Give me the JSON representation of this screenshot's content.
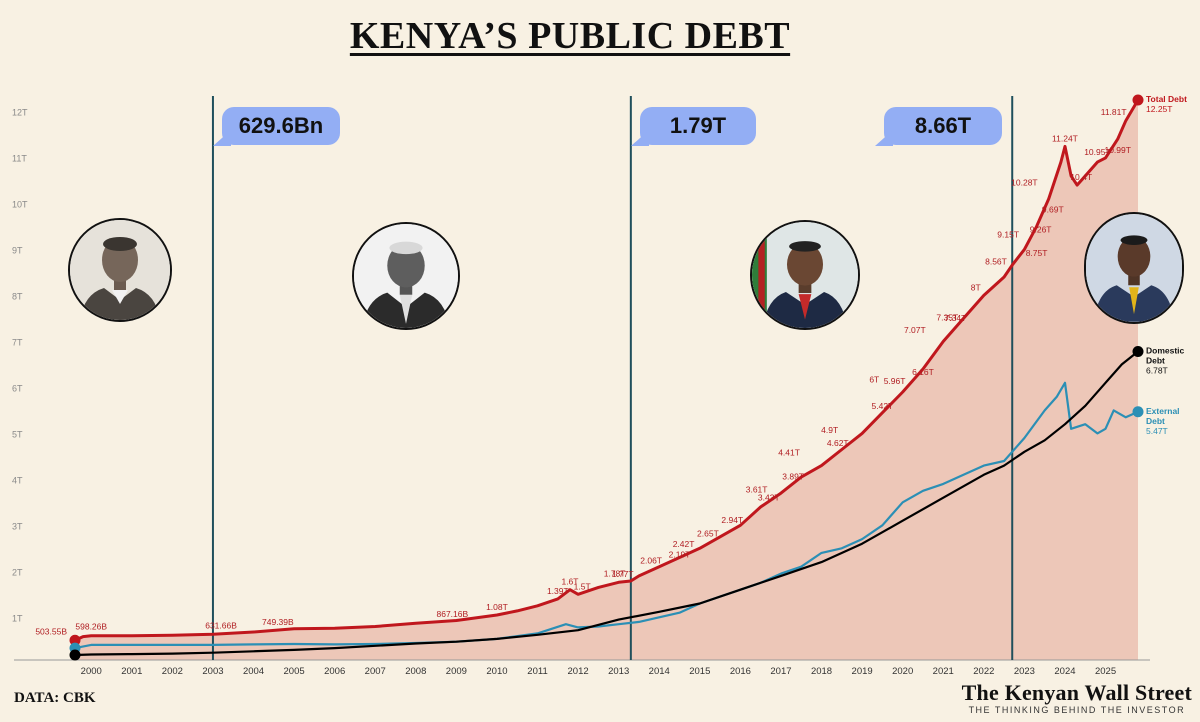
{
  "header": {
    "title": "KENYA’S PUBLIC DEBT"
  },
  "footer": {
    "source": "DATA: CBK",
    "brand": "The Kenyan Wall Street",
    "tagline": "THE THINKING BEHIND THE INVESTOR"
  },
  "colors": {
    "total": "#c0171d",
    "domestic": "#000000",
    "external": "#2b8fb5",
    "fill": "#ebbfb0",
    "divider": "#1f4f5c",
    "bubble": "#93aef4",
    "background": "#f8f1e3"
  },
  "bubbles": [
    {
      "text": "629.6Bn"
    },
    {
      "text": "1.79T"
    },
    {
      "text": "8.66T"
    }
  ],
  "portraits": [
    {
      "icon": "portrait-1-icon"
    },
    {
      "icon": "portrait-2-icon"
    },
    {
      "icon": "portrait-3-icon"
    },
    {
      "icon": "portrait-4-icon"
    }
  ],
  "chart_data": {
    "type": "line",
    "x_ticks": [
      "2000",
      "2001",
      "2002",
      "2003",
      "2004",
      "2005",
      "2006",
      "2007",
      "2008",
      "2009",
      "2010",
      "2011",
      "2012",
      "2013",
      "2014",
      "2015",
      "2016",
      "2017",
      "2018",
      "2019",
      "2020",
      "2021",
      "2022",
      "2023",
      "2024",
      "2025"
    ],
    "y_ticks": [
      "1T",
      "2T",
      "3T",
      "4T",
      "5T",
      "6T",
      "7T",
      "8T",
      "9T",
      "10T",
      "11T",
      "12T"
    ],
    "ylim": [
      0,
      12.5
    ],
    "xlim": [
      1999.4,
      2026.3
    ],
    "grid": false,
    "series": [
      {
        "key": "total",
        "color": "#c0171d",
        "points": [
          [
            1999.6,
            0.5
          ],
          [
            1999.8,
            0.58
          ],
          [
            2000.0,
            0.6
          ],
          [
            2001,
            0.6
          ],
          [
            2002,
            0.61
          ],
          [
            2003,
            0.63
          ],
          [
            2004,
            0.68
          ],
          [
            2005,
            0.75
          ],
          [
            2006,
            0.76
          ],
          [
            2007,
            0.8
          ],
          [
            2008,
            0.87
          ],
          [
            2009,
            0.93
          ],
          [
            2010,
            1.05
          ],
          [
            2010.5,
            1.14
          ],
          [
            2011,
            1.25
          ],
          [
            2011.5,
            1.4
          ],
          [
            2011.8,
            1.6
          ],
          [
            2012,
            1.5
          ],
          [
            2012.5,
            1.65
          ],
          [
            2013,
            1.76
          ],
          [
            2013.3,
            1.79
          ],
          [
            2013.5,
            1.9
          ],
          [
            2014,
            2.1
          ],
          [
            2014.5,
            2.3
          ],
          [
            2015,
            2.5
          ],
          [
            2015.5,
            2.75
          ],
          [
            2016,
            3.0
          ],
          [
            2016.5,
            3.4
          ],
          [
            2017,
            3.7
          ],
          [
            2017.5,
            4.05
          ],
          [
            2018,
            4.3
          ],
          [
            2018.5,
            4.65
          ],
          [
            2019,
            5.0
          ],
          [
            2019.5,
            5.45
          ],
          [
            2020,
            5.9
          ],
          [
            2020.5,
            6.4
          ],
          [
            2021,
            7.0
          ],
          [
            2021.5,
            7.5
          ],
          [
            2022,
            8.0
          ],
          [
            2022.5,
            8.4
          ],
          [
            2022.7,
            8.66
          ],
          [
            2023,
            9.0
          ],
          [
            2023.3,
            9.5
          ],
          [
            2023.6,
            10.1
          ],
          [
            2023.9,
            10.9
          ],
          [
            2024.0,
            11.24
          ],
          [
            2024.15,
            10.6
          ],
          [
            2024.3,
            10.4
          ],
          [
            2024.5,
            10.6
          ],
          [
            2024.8,
            10.9
          ],
          [
            2025.0,
            10.99
          ],
          [
            2025.3,
            11.4
          ],
          [
            2025.5,
            11.8
          ],
          [
            2025.8,
            12.25
          ]
        ],
        "labels": [
          {
            "text": "503.55B",
            "x": 1999.6,
            "y": 0.5
          },
          {
            "text": "598.26B",
            "x": 2000.0,
            "y": 0.6
          },
          {
            "text": "631.66B",
            "x": 2003.2,
            "y": 0.63
          },
          {
            "text": "749.39B",
            "x": 2004.6,
            "y": 0.7
          },
          {
            "text": "867.16B",
            "x": 2008.9,
            "y": 0.88
          },
          {
            "text": "1.08T",
            "x": 2010.0,
            "y": 1.05
          },
          {
            "text": "1.39T",
            "x": 2011.5,
            "y": 1.4
          },
          {
            "text": "1.5T",
            "x": 2012.1,
            "y": 1.5
          },
          {
            "text": "1.6T",
            "x": 2011.8,
            "y": 1.6
          },
          {
            "text": "1.77T",
            "x": 2013.1,
            "y": 1.77
          },
          {
            "text": "1.78T",
            "x": 2012.9,
            "y": 1.78
          },
          {
            "text": "2.06T",
            "x": 2013.8,
            "y": 2.06
          },
          {
            "text": "2.19T",
            "x": 2014.5,
            "y": 2.19
          },
          {
            "text": "2.42T",
            "x": 2014.6,
            "y": 2.42
          },
          {
            "text": "2.65T",
            "x": 2015.2,
            "y": 2.65
          },
          {
            "text": "2.94T",
            "x": 2015.8,
            "y": 2.94
          },
          {
            "text": "3.43T",
            "x": 2016.7,
            "y": 3.43
          },
          {
            "text": "3.61T",
            "x": 2016.4,
            "y": 3.61
          },
          {
            "text": "3.89T",
            "x": 2017.3,
            "y": 3.89
          },
          {
            "text": "4.41T",
            "x": 2017.2,
            "y": 4.41
          },
          {
            "text": "4.62T",
            "x": 2018.4,
            "y": 4.62
          },
          {
            "text": "4.9T",
            "x": 2018.2,
            "y": 4.9
          },
          {
            "text": "5.42T",
            "x": 2019.5,
            "y": 5.42
          },
          {
            "text": "5.96T",
            "x": 2019.8,
            "y": 5.96
          },
          {
            "text": "6T",
            "x": 2019.3,
            "y": 6.0
          },
          {
            "text": "6.16T",
            "x": 2020.5,
            "y": 6.16
          },
          {
            "text": "7.07T",
            "x": 2020.3,
            "y": 7.07
          },
          {
            "text": "7.34T",
            "x": 2021.3,
            "y": 7.34
          },
          {
            "text": "7.35T",
            "x": 2021.1,
            "y": 7.35
          },
          {
            "text": "8T",
            "x": 2021.8,
            "y": 8.0
          },
          {
            "text": "8.56T",
            "x": 2022.3,
            "y": 8.56
          },
          {
            "text": "8.75T",
            "x": 2023.3,
            "y": 8.75
          },
          {
            "text": "9.15T",
            "x": 2022.6,
            "y": 9.15
          },
          {
            "text": "9.26T",
            "x": 2023.4,
            "y": 9.26
          },
          {
            "text": "9.69T",
            "x": 2023.7,
            "y": 9.69
          },
          {
            "text": "10.28T",
            "x": 2023.0,
            "y": 10.28
          },
          {
            "text": "10.4T",
            "x": 2024.4,
            "y": 10.4
          },
          {
            "text": "10.95T",
            "x": 2024.8,
            "y": 10.95
          },
          {
            "text": "10.99T",
            "x": 2025.3,
            "y": 10.99
          },
          {
            "text": "11.24T",
            "x": 2024.0,
            "y": 11.24
          },
          {
            "text": "11.81T",
            "x": 2025.2,
            "y": 11.81
          }
        ]
      },
      {
        "key": "domestic",
        "color": "#000000",
        "points": [
          [
            1999.6,
            0.18
          ],
          [
            2000,
            0.19
          ],
          [
            2001,
            0.2
          ],
          [
            2002,
            0.21
          ],
          [
            2003,
            0.23
          ],
          [
            2004,
            0.26
          ],
          [
            2005,
            0.29
          ],
          [
            2006,
            0.33
          ],
          [
            2007,
            0.38
          ],
          [
            2008,
            0.43
          ],
          [
            2009,
            0.47
          ],
          [
            2010,
            0.53
          ],
          [
            2011,
            0.62
          ],
          [
            2012,
            0.72
          ],
          [
            2013,
            0.95
          ],
          [
            2014,
            1.12
          ],
          [
            2015,
            1.3
          ],
          [
            2016,
            1.6
          ],
          [
            2017,
            1.9
          ],
          [
            2018,
            2.2
          ],
          [
            2019,
            2.6
          ],
          [
            2020,
            3.1
          ],
          [
            2021,
            3.6
          ],
          [
            2022,
            4.1
          ],
          [
            2022.5,
            4.3
          ],
          [
            2023,
            4.6
          ],
          [
            2023.5,
            4.85
          ],
          [
            2024,
            5.2
          ],
          [
            2024.5,
            5.6
          ],
          [
            2025,
            6.1
          ],
          [
            2025.4,
            6.5
          ],
          [
            2025.8,
            6.78
          ]
        ]
      },
      {
        "key": "external",
        "color": "#2b8fb5",
        "points": [
          [
            1999.6,
            0.33
          ],
          [
            2000,
            0.4
          ],
          [
            2001,
            0.4
          ],
          [
            2002,
            0.4
          ],
          [
            2003,
            0.4
          ],
          [
            2004,
            0.41
          ],
          [
            2005,
            0.42
          ],
          [
            2006,
            0.41
          ],
          [
            2007,
            0.42
          ],
          [
            2008,
            0.44
          ],
          [
            2009,
            0.47
          ],
          [
            2010,
            0.53
          ],
          [
            2011,
            0.65
          ],
          [
            2011.7,
            0.85
          ],
          [
            2012,
            0.78
          ],
          [
            2012.5,
            0.8
          ],
          [
            2013,
            0.85
          ],
          [
            2013.5,
            0.9
          ],
          [
            2014,
            1.0
          ],
          [
            2014.5,
            1.1
          ],
          [
            2015,
            1.3
          ],
          [
            2015.5,
            1.45
          ],
          [
            2016,
            1.6
          ],
          [
            2016.5,
            1.75
          ],
          [
            2017,
            1.95
          ],
          [
            2017.5,
            2.1
          ],
          [
            2018,
            2.4
          ],
          [
            2018.5,
            2.5
          ],
          [
            2019,
            2.7
          ],
          [
            2019.5,
            3.0
          ],
          [
            2020,
            3.5
          ],
          [
            2020.5,
            3.75
          ],
          [
            2021,
            3.9
          ],
          [
            2021.5,
            4.1
          ],
          [
            2022,
            4.3
          ],
          [
            2022.5,
            4.4
          ],
          [
            2023,
            4.9
          ],
          [
            2023.5,
            5.5
          ],
          [
            2023.8,
            5.8
          ],
          [
            2024.0,
            6.1
          ],
          [
            2024.15,
            5.1
          ],
          [
            2024.5,
            5.2
          ],
          [
            2024.8,
            5.0
          ],
          [
            2025.0,
            5.1
          ],
          [
            2025.2,
            5.5
          ],
          [
            2025.5,
            5.35
          ],
          [
            2025.8,
            5.47
          ]
        ]
      }
    ],
    "end_labels": [
      {
        "name": "Total Debt",
        "value": "12.25T",
        "series": "total",
        "x": 2025.8,
        "y": 12.25
      },
      {
        "name": "Domestic Debt",
        "value": "6.78T",
        "series": "domestic",
        "x": 2025.8,
        "y": 6.78
      },
      {
        "name": "External Debt",
        "value": "5.47T",
        "series": "external",
        "x": 2025.8,
        "y": 5.47
      }
    ],
    "start_markers": [
      {
        "series": "total",
        "x": 1999.6,
        "y": 0.5
      },
      {
        "series": "external",
        "x": 1999.6,
        "y": 0.33
      },
      {
        "series": "domestic",
        "x": 1999.6,
        "y": 0.18
      }
    ],
    "dividers": [
      2003.0,
      2013.3,
      2022.7
    ]
  }
}
